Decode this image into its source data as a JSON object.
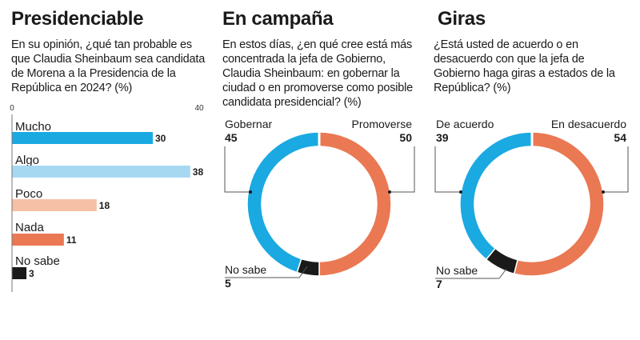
{
  "colors": {
    "mucho": "#1aa9e1",
    "algo": "#a7d8f2",
    "poco": "#f6c0a5",
    "nada": "#ea7853",
    "no_sabe": "#1a1a1a",
    "blue": "#1aa9e1",
    "orange": "#ea7853",
    "dark": "#1a1a1a",
    "axis": "#777777"
  },
  "panels": {
    "presidenciable": {
      "title": "Presidenciable",
      "question": "En su opinión, ¿qué tan probable es que Claudia Sheinbaum sea candidata de Morena a la Presidencia de la República en 2024? (%)"
    },
    "campana": {
      "title": "En campaña",
      "question": "En estos días, ¿en qué cree está más concentrada la jefa de Gobierno, Claudia Sheinbaum: en gobernar la ciudad o en promoverse como posible candidata presidencial? (%)"
    },
    "giras": {
      "title": "Giras",
      "question": "¿Está usted de acuerdo o en desacuerdo con que la jefa de Gobierno haga giras a estados de la República? (%)"
    }
  },
  "chart_data": [
    {
      "type": "bar",
      "orientation": "horizontal",
      "title": "Presidenciable",
      "categories": [
        "Mucho",
        "Algo",
        "Poco",
        "Nada",
        "No sabe"
      ],
      "values": [
        30,
        38,
        18,
        11,
        3
      ],
      "value_labels": [
        "30",
        "38",
        "18",
        "11",
        "3"
      ],
      "xlim": [
        0,
        40
      ],
      "xticks": [
        "0",
        "40"
      ],
      "colors": [
        "#1aa9e1",
        "#a7d8f2",
        "#f6c0a5",
        "#ea7853",
        "#1a1a1a"
      ]
    },
    {
      "type": "pie",
      "style": "donut",
      "title": "En campaña",
      "slices": [
        {
          "label": "Gobernar",
          "value": 45,
          "value_label": "45",
          "color": "#1aa9e1"
        },
        {
          "label": "Promoverse",
          "value": 50,
          "value_label": "50",
          "color": "#ea7853"
        },
        {
          "label": "No sabe",
          "value": 5,
          "value_label": "5",
          "color": "#1a1a1a"
        }
      ]
    },
    {
      "type": "pie",
      "style": "donut",
      "title": "Giras",
      "slices": [
        {
          "label": "De acuerdo",
          "value": 39,
          "value_label": "39",
          "color": "#1aa9e1"
        },
        {
          "label": "En desacuerdo",
          "value": 54,
          "value_label": "54",
          "color": "#ea7853"
        },
        {
          "label": "No sabe",
          "value": 7,
          "value_label": "7",
          "color": "#1a1a1a"
        }
      ]
    }
  ]
}
